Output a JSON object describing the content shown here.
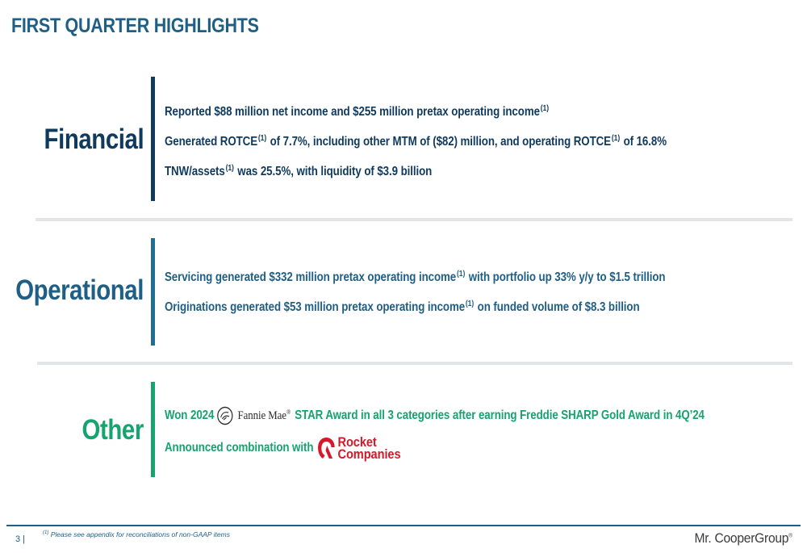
{
  "title": "FIRST QUARTER HIGHLIGHTS",
  "footnote_marker": "(1)",
  "sections": {
    "financial": {
      "label": "Financial",
      "items": [
        {
          "text": "Reported $88 million net income and $255 million pretax operating income",
          "sup": "(1)"
        },
        {
          "part1": "Generated ROTCE",
          "sup1": "(1)",
          "part2": " of 7.7%, including other MTM of ($82) million, and operating ROTCE",
          "sup2": "(1)",
          "part3": " of 16.8%"
        },
        {
          "part1": "TNW/assets",
          "sup1": "(1)",
          "part2": " was 25.5%, with liquidity of $3.9 billion"
        }
      ]
    },
    "operational": {
      "label": "Operational",
      "items": [
        {
          "part1": "Servicing generated $332 million pretax operating income",
          "sup1": "(1)",
          "part2": " with portfolio up 33% y/y to $1.5 trillion"
        },
        {
          "part1": "Originations generated $53 million pretax operating income",
          "sup1": "(1)",
          "part2": " on funded volume of $8.3 billion"
        }
      ]
    },
    "other": {
      "label": "Other",
      "items": [
        {
          "part1": "Won 2024",
          "logo_text": "Fannie Mae",
          "logo_reg": "®",
          "part2": "STAR Award in all 3 categories after earning Freddie SHARP Gold Award in 4Q’24"
        },
        {
          "part1": "Announced combination with",
          "logo_line1": "Rocket",
          "logo_line2": "Companies"
        }
      ]
    }
  },
  "footer": {
    "page_number": "3 |",
    "footnote": "Please see appendix for reconciliations of non-GAAP items",
    "brand": "Mr. CooperGroup",
    "brand_reg": "®"
  },
  "colors": {
    "financial": "#0f3a5e",
    "operational": "#1f5f86",
    "other": "#15a36e",
    "rocket_red": "#d6192a"
  }
}
